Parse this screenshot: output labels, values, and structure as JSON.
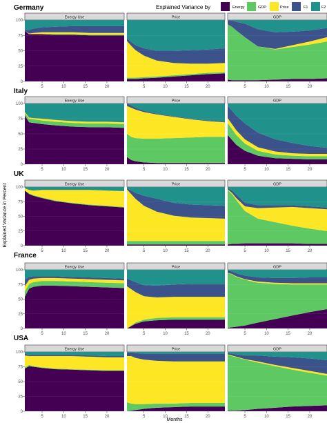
{
  "chart_data": {
    "type": "area",
    "stacked": true,
    "xlabel": "Months",
    "ylabel": "Explained Variance in Percent",
    "xlim": [
      1,
      24
    ],
    "ylim": [
      0,
      100
    ],
    "x_ticks": [
      5,
      10,
      15,
      20
    ],
    "y_ticks": [
      0,
      25,
      50,
      75,
      100
    ],
    "grid": true,
    "legend": {
      "title": "Explained Variance by",
      "position": "top-right",
      "entries": [
        "Energy",
        "GDP",
        "Price",
        "F1",
        "F2"
      ]
    },
    "stack_order": [
      "Energy",
      "GDP",
      "Price",
      "F1",
      "F2"
    ],
    "colors": {
      "Energy": "#440154",
      "GDP": "#5ec962",
      "Price": "#fde725",
      "F1": "#3b528b",
      "F2": "#21918c",
      "strip_bg": "#d9d9d9",
      "panel_bg": "#ebebeb",
      "grid": "#ffffff"
    },
    "x_knots": [
      1,
      2,
      3,
      5,
      8,
      12,
      16,
      20,
      24
    ],
    "panels": [
      {
        "country": "Germany",
        "variable": "Energy Use",
        "energy": [
          82,
          77,
          77,
          77,
          76,
          76,
          75,
          75,
          75
        ],
        "gdp": [
          0,
          0,
          0,
          0,
          1,
          1,
          1,
          1,
          1
        ],
        "price": [
          0,
          1,
          2,
          3,
          3,
          3,
          3,
          3,
          3
        ],
        "f1": [
          2,
          6,
          7,
          8,
          9,
          10,
          11,
          11,
          11
        ]
      },
      {
        "country": "Germany",
        "variable": "Price",
        "energy": [
          4,
          4,
          4,
          5,
          6,
          8,
          10,
          12,
          13
        ],
        "gdp": [
          2,
          2,
          2,
          2,
          2,
          2,
          2,
          2,
          2
        ],
        "price": [
          60,
          52,
          45,
          35,
          26,
          20,
          17,
          15,
          15
        ],
        "f1": [
          4,
          6,
          8,
          12,
          16,
          20,
          22,
          23,
          24
        ]
      },
      {
        "country": "Germany",
        "variable": "GDP",
        "energy": [
          3,
          2,
          2,
          2,
          2,
          3,
          4,
          4,
          5
        ],
        "gdp": [
          90,
          87,
          81,
          70,
          55,
          49,
          52,
          56,
          60
        ],
        "price": [
          0,
          0,
          0,
          0,
          0,
          1,
          3,
          5,
          7
        ],
        "f1": [
          7,
          10,
          14,
          22,
          28,
          27,
          22,
          18,
          15
        ]
      },
      {
        "country": "Italy",
        "variable": "Energy Use",
        "energy": [
          80,
          69,
          68,
          66,
          64,
          62,
          61,
          61,
          60
        ],
        "gdp": [
          4,
          6,
          6,
          6,
          6,
          6,
          6,
          6,
          6
        ],
        "price": [
          2,
          2,
          2,
          3,
          3,
          3,
          3,
          3,
          3
        ],
        "f1": [
          0,
          0,
          0,
          0,
          0,
          0,
          0,
          0,
          0
        ]
      },
      {
        "country": "Italy",
        "variable": "Price",
        "energy": [
          12,
          7,
          5,
          3,
          2,
          2,
          2,
          2,
          2
        ],
        "gdp": [
          38,
          38,
          38,
          39,
          40,
          41,
          42,
          43,
          43
        ],
        "price": [
          46,
          48,
          47,
          44,
          40,
          35,
          30,
          26,
          24
        ],
        "f1": [
          4,
          4,
          3,
          2,
          1,
          1,
          1,
          1,
          1
        ]
      },
      {
        "country": "Italy",
        "variable": "GDP",
        "energy": [
          48,
          40,
          32,
          22,
          14,
          10,
          9,
          8,
          8
        ],
        "gdp": [
          20,
          18,
          16,
          12,
          8,
          6,
          5,
          5,
          5
        ],
        "price": [
          8,
          8,
          8,
          7,
          6,
          5,
          4,
          4,
          4
        ],
        "f1": [
          20,
          22,
          24,
          26,
          24,
          20,
          17,
          13,
          10
        ]
      },
      {
        "country": "UK",
        "variable": "Energy Use",
        "energy": [
          94,
          88,
          85,
          81,
          76,
          72,
          69,
          67,
          65
        ],
        "gdp": [
          0,
          1,
          1,
          1,
          1,
          1,
          1,
          1,
          1
        ],
        "price": [
          4,
          6,
          8,
          13,
          18,
          22,
          25,
          26,
          27
        ],
        "f1": [
          0,
          0,
          0,
          0,
          0,
          0,
          0,
          0,
          0
        ]
      },
      {
        "country": "UK",
        "variable": "Price",
        "energy": [
          2,
          2,
          2,
          2,
          2,
          2,
          2,
          2,
          2
        ],
        "gdp": [
          6,
          6,
          6,
          6,
          6,
          6,
          6,
          6,
          6
        ],
        "price": [
          88,
          80,
          72,
          60,
          50,
          43,
          40,
          39,
          38
        ],
        "f1": [
          2,
          6,
          10,
          17,
          22,
          22,
          22,
          22,
          22
        ]
      },
      {
        "country": "UK",
        "variable": "GDP",
        "energy": [
          2,
          3,
          3,
          4,
          4,
          4,
          4,
          3,
          3
        ],
        "gdp": [
          93,
          85,
          75,
          55,
          42,
          36,
          30,
          26,
          22
        ],
        "price": [
          1,
          2,
          3,
          8,
          18,
          25,
          32,
          35,
          37
        ],
        "f1": [
          2,
          4,
          6,
          6,
          5,
          4,
          3,
          3,
          3
        ]
      },
      {
        "country": "France",
        "variable": "Energy Use",
        "energy": [
          54,
          68,
          71,
          73,
          73,
          72,
          71,
          70,
          69
        ],
        "gdp": [
          9,
          8,
          8,
          8,
          8,
          8,
          8,
          8,
          8
        ],
        "price": [
          9,
          7,
          6,
          5,
          5,
          5,
          5,
          5,
          5
        ],
        "f1": [
          11,
          5,
          4,
          3,
          3,
          3,
          3,
          3,
          3
        ]
      },
      {
        "country": "France",
        "variable": "Price",
        "energy": [
          0,
          4,
          8,
          12,
          14,
          15,
          15,
          15,
          15
        ],
        "gdp": [
          0,
          1,
          2,
          3,
          4,
          4,
          4,
          4,
          4
        ],
        "price": [
          72,
          62,
          52,
          40,
          35,
          35,
          35,
          35,
          35
        ],
        "f1": [
          13,
          15,
          17,
          19,
          20,
          21,
          22,
          22,
          22
        ]
      },
      {
        "country": "France",
        "variable": "GDP",
        "energy": [
          1,
          2,
          3,
          5,
          10,
          16,
          22,
          28,
          33
        ],
        "gdp": [
          94,
          90,
          85,
          78,
          68,
          60,
          53,
          47,
          42
        ],
        "price": [
          0,
          1,
          1,
          1,
          2,
          2,
          2,
          2,
          2
        ],
        "f1": [
          4,
          4,
          5,
          6,
          7,
          8,
          9,
          10,
          10
        ]
      },
      {
        "country": "USA",
        "variable": "Energy Use",
        "energy": [
          72,
          76,
          75,
          73,
          71,
          70,
          69,
          68,
          68
        ],
        "gdp": [
          2,
          2,
          1,
          1,
          1,
          1,
          1,
          1,
          1
        ],
        "price": [
          20,
          15,
          17,
          19,
          21,
          22,
          22,
          22,
          22
        ],
        "f1": [
          3,
          2,
          2,
          2,
          2,
          2,
          2,
          2,
          2
        ]
      },
      {
        "country": "USA",
        "variable": "Price",
        "energy": [
          0,
          1,
          2,
          4,
          6,
          7,
          8,
          8,
          8
        ],
        "gdp": [
          15,
          12,
          10,
          8,
          7,
          6,
          6,
          6,
          6
        ],
        "price": [
          78,
          80,
          78,
          75,
          72,
          71,
          70,
          70,
          70
        ],
        "f1": [
          6,
          6,
          8,
          10,
          12,
          13,
          13,
          13,
          13
        ]
      },
      {
        "country": "USA",
        "variable": "GDP",
        "energy": [
          1,
          1,
          1,
          2,
          4,
          6,
          8,
          9,
          10
        ],
        "gdp": [
          94,
          92,
          90,
          85,
          78,
          70,
          62,
          56,
          50
        ],
        "price": [
          1,
          1,
          1,
          1,
          2,
          2,
          3,
          3,
          3
        ],
        "f1": [
          2,
          3,
          4,
          6,
          10,
          14,
          18,
          21,
          23
        ]
      }
    ]
  }
}
